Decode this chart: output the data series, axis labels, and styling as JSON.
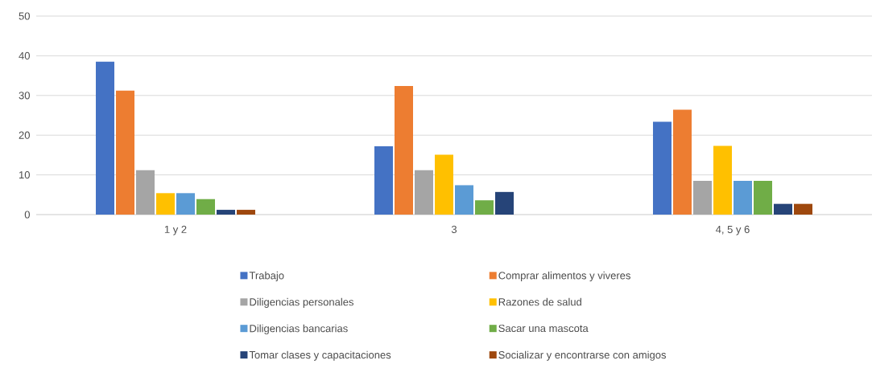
{
  "chart_data": {
    "type": "bar",
    "categories": [
      "1 y 2",
      "3",
      "4, 5 y 6"
    ],
    "series": [
      {
        "name": "Trabajo",
        "color": "#4472c4",
        "values": [
          38.5,
          17.2,
          23.4
        ]
      },
      {
        "name": "Comprar alimentos y viveres",
        "color": "#ed7d31",
        "values": [
          31.2,
          32.4,
          26.4
        ]
      },
      {
        "name": "Diligencias personales",
        "color": "#a5a5a5",
        "values": [
          11.2,
          11.2,
          8.5
        ]
      },
      {
        "name": "Razones de salud",
        "color": "#ffc000",
        "values": [
          5.4,
          15.1,
          17.3
        ]
      },
      {
        "name": "Diligencias bancarias",
        "color": "#5b9bd5",
        "values": [
          5.4,
          7.4,
          8.5
        ]
      },
      {
        "name": "Sacar una mascota",
        "color": "#70ad47",
        "values": [
          3.9,
          3.6,
          8.5
        ]
      },
      {
        "name": "Tomar clases y capacitaciones",
        "color": "#264478",
        "values": [
          1.2,
          5.7,
          2.7
        ]
      },
      {
        "name": "Socializar y encontrarse con amigos",
        "color": "#9e480e",
        "values": [
          1.2,
          null,
          2.7
        ]
      }
    ],
    "ylim": [
      0,
      50
    ],
    "yticks": [
      0,
      10,
      20,
      30,
      40,
      50
    ],
    "grid": "y",
    "legend": "bottom"
  }
}
